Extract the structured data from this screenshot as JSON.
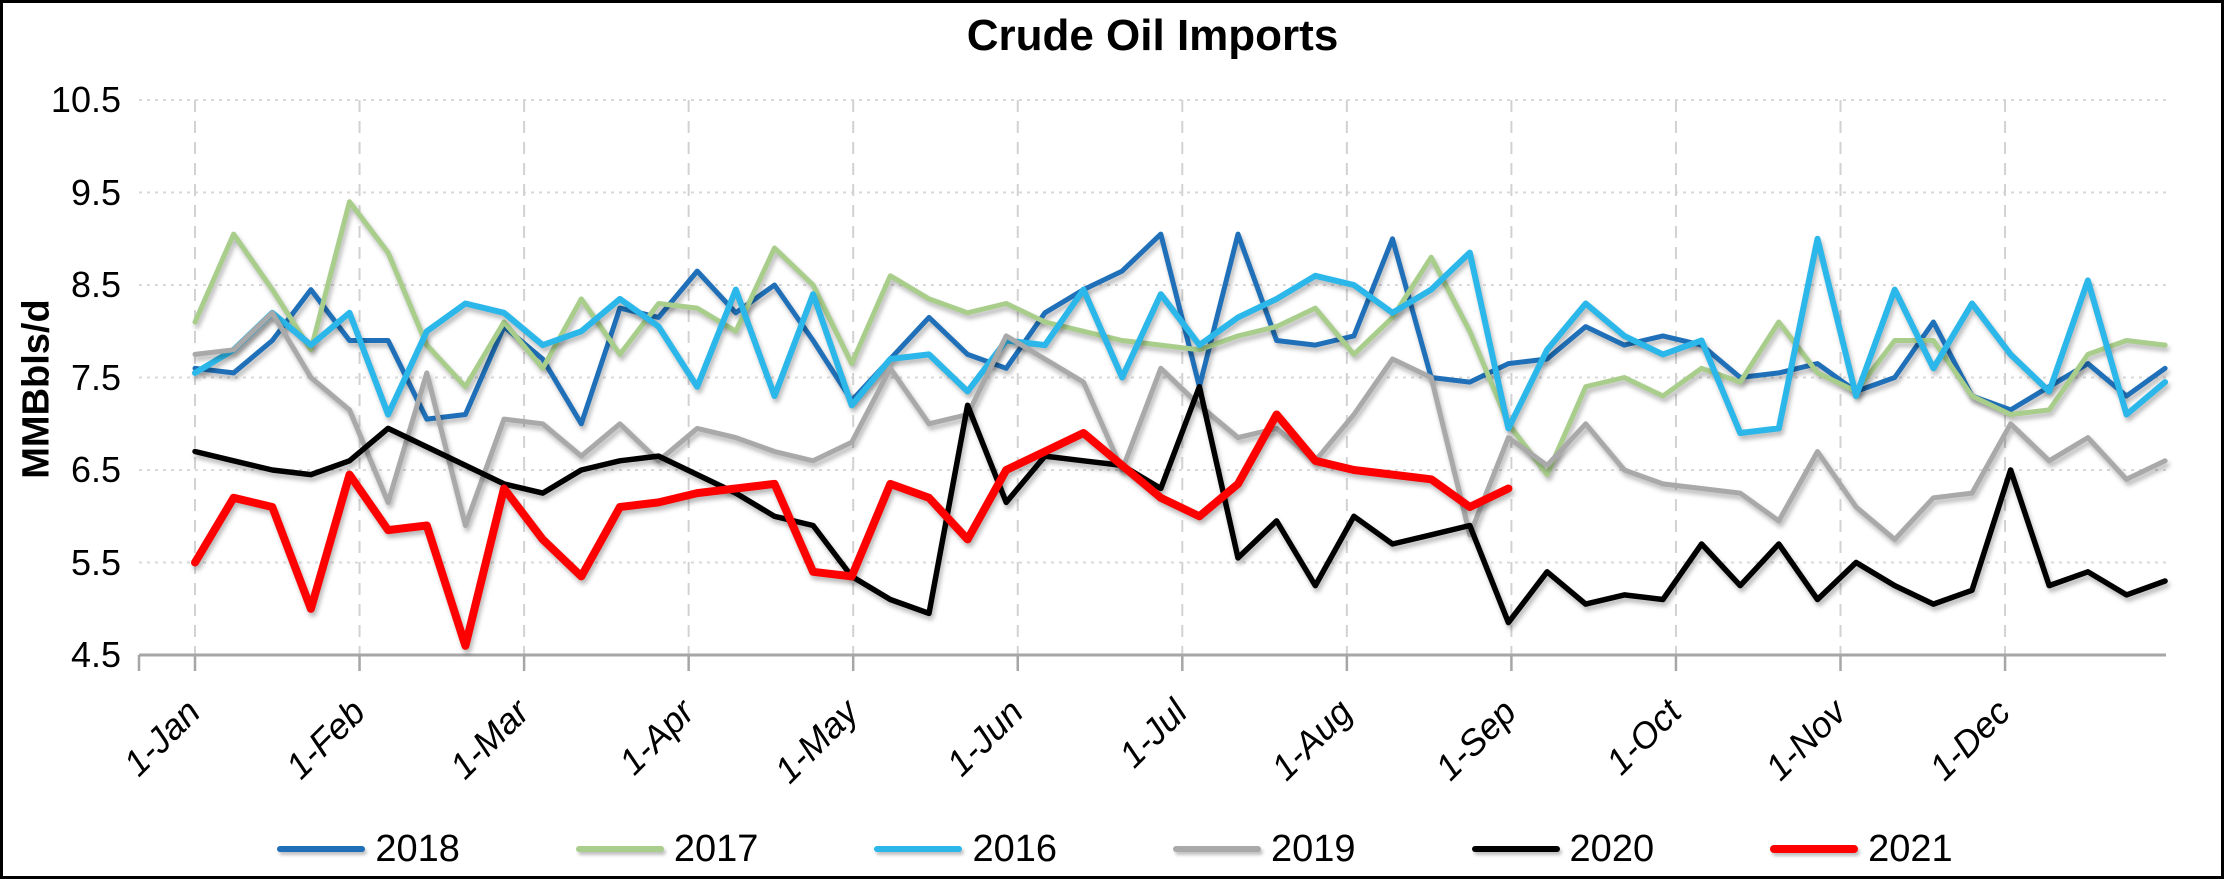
{
  "chart_data": {
    "type": "line",
    "title": "Crude Oil Imports",
    "y_axis_label": "MMBbls/d",
    "ylim": [
      4.5,
      10.5
    ],
    "y_ticks": [
      "10.5",
      "9.5",
      "8.5",
      "7.5",
      "6.5",
      "5.5",
      "4.5"
    ],
    "x_tick_labels": [
      "1-Jan",
      "1-Feb",
      "1-Mar",
      "1-Apr",
      "1-May",
      "1-Jun",
      "1-Jul",
      "1-Aug",
      "1-Sep",
      "1-Oct",
      "1-Nov",
      "1-Dec"
    ],
    "x_unit": "weekly (52 points per year)",
    "grid": {
      "horizontal": "dotted",
      "vertical": "dashed"
    },
    "legend_position": "bottom",
    "axis_color": "#a6a6a6",
    "gridline_color": "#d9d9d9",
    "series": [
      {
        "name": "2018",
        "color": "#1f70b8",
        "width": 5,
        "values": [
          7.6,
          7.55,
          7.9,
          8.45,
          7.9,
          7.9,
          7.05,
          7.1,
          8.05,
          7.7,
          7.0,
          8.25,
          8.15,
          8.65,
          8.2,
          8.5,
          7.9,
          7.25,
          7.7,
          8.15,
          7.75,
          7.6,
          8.2,
          8.45,
          8.65,
          9.05,
          7.4,
          9.05,
          7.9,
          7.85,
          7.95,
          9.0,
          7.5,
          7.45,
          7.65,
          7.7,
          8.05,
          7.85,
          7.95,
          7.85,
          7.5,
          7.55,
          7.65,
          7.35,
          7.5,
          8.1,
          7.3,
          7.15,
          7.4,
          7.65,
          7.3,
          7.6
        ]
      },
      {
        "name": "2017",
        "color": "#a9ce8c",
        "width": 5,
        "values": [
          8.1,
          9.05,
          8.45,
          7.8,
          9.4,
          8.85,
          7.85,
          7.4,
          8.1,
          7.6,
          8.35,
          7.75,
          8.3,
          8.25,
          8.0,
          8.9,
          8.5,
          7.65,
          8.6,
          8.35,
          8.2,
          8.3,
          8.1,
          8.0,
          7.9,
          7.85,
          7.8,
          7.95,
          8.05,
          8.25,
          7.75,
          8.15,
          8.8,
          8.0,
          7.0,
          6.45,
          7.4,
          7.5,
          7.3,
          7.6,
          7.45,
          8.1,
          7.55,
          7.35,
          7.9,
          7.9,
          7.3,
          7.1,
          7.15,
          7.75,
          7.9,
          7.85
        ]
      },
      {
        "name": "2016",
        "color": "#2bb7e9",
        "width": 6,
        "values": [
          7.55,
          7.8,
          8.2,
          7.85,
          8.2,
          7.1,
          8.0,
          8.3,
          8.2,
          7.85,
          8.0,
          8.35,
          8.05,
          7.4,
          8.45,
          7.3,
          8.4,
          7.2,
          7.7,
          7.75,
          7.35,
          7.9,
          7.85,
          8.45,
          7.5,
          8.4,
          7.85,
          8.15,
          8.35,
          8.6,
          8.5,
          8.2,
          8.45,
          8.85,
          6.95,
          7.8,
          8.3,
          7.95,
          7.75,
          7.9,
          6.9,
          6.95,
          9.0,
          7.3,
          8.45,
          7.6,
          8.3,
          7.75,
          7.35,
          8.55,
          7.1,
          7.45
        ]
      },
      {
        "name": "2019",
        "color": "#a9a9a9",
        "width": 5,
        "values": [
          7.75,
          7.8,
          8.2,
          7.5,
          7.15,
          6.15,
          7.55,
          5.9,
          7.05,
          7.0,
          6.65,
          7.0,
          6.6,
          6.95,
          6.85,
          6.7,
          6.6,
          6.8,
          7.6,
          7.0,
          7.1,
          7.95,
          7.7,
          7.45,
          6.5,
          7.6,
          7.2,
          6.85,
          6.95,
          6.6,
          7.1,
          7.7,
          7.5,
          5.8,
          6.85,
          6.55,
          7.0,
          6.5,
          6.35,
          6.3,
          6.25,
          5.95,
          6.7,
          6.1,
          5.75,
          6.2,
          6.25,
          7.0,
          6.6,
          6.85,
          6.4,
          6.6
        ]
      },
      {
        "name": "2020",
        "color": "#000000",
        "width": 5.5,
        "values": [
          6.7,
          6.6,
          6.5,
          6.45,
          6.6,
          6.95,
          6.75,
          6.55,
          6.35,
          6.25,
          6.5,
          6.6,
          6.65,
          6.45,
          6.25,
          6.0,
          5.9,
          5.35,
          5.1,
          4.95,
          7.2,
          6.15,
          6.65,
          6.6,
          6.55,
          6.3,
          7.4,
          5.55,
          5.95,
          5.25,
          6.0,
          5.7,
          5.8,
          5.9,
          4.85,
          5.4,
          5.05,
          5.15,
          5.1,
          5.7,
          5.25,
          5.7,
          5.1,
          5.5,
          5.25,
          5.05,
          5.2,
          6.5,
          5.25,
          5.4,
          5.15,
          5.3
        ]
      },
      {
        "name": "2021",
        "color": "#ff0000",
        "width": 8,
        "values": [
          5.5,
          6.2,
          6.1,
          5.0,
          6.45,
          5.85,
          5.9,
          4.6,
          6.3,
          5.75,
          5.35,
          6.1,
          6.15,
          6.25,
          6.3,
          6.35,
          5.4,
          5.35,
          6.35,
          6.2,
          5.75,
          6.5,
          6.7,
          6.9,
          6.55,
          6.2,
          6.0,
          6.35,
          7.1,
          6.6,
          6.5,
          6.45,
          6.4,
          6.1,
          6.3
        ]
      }
    ]
  }
}
